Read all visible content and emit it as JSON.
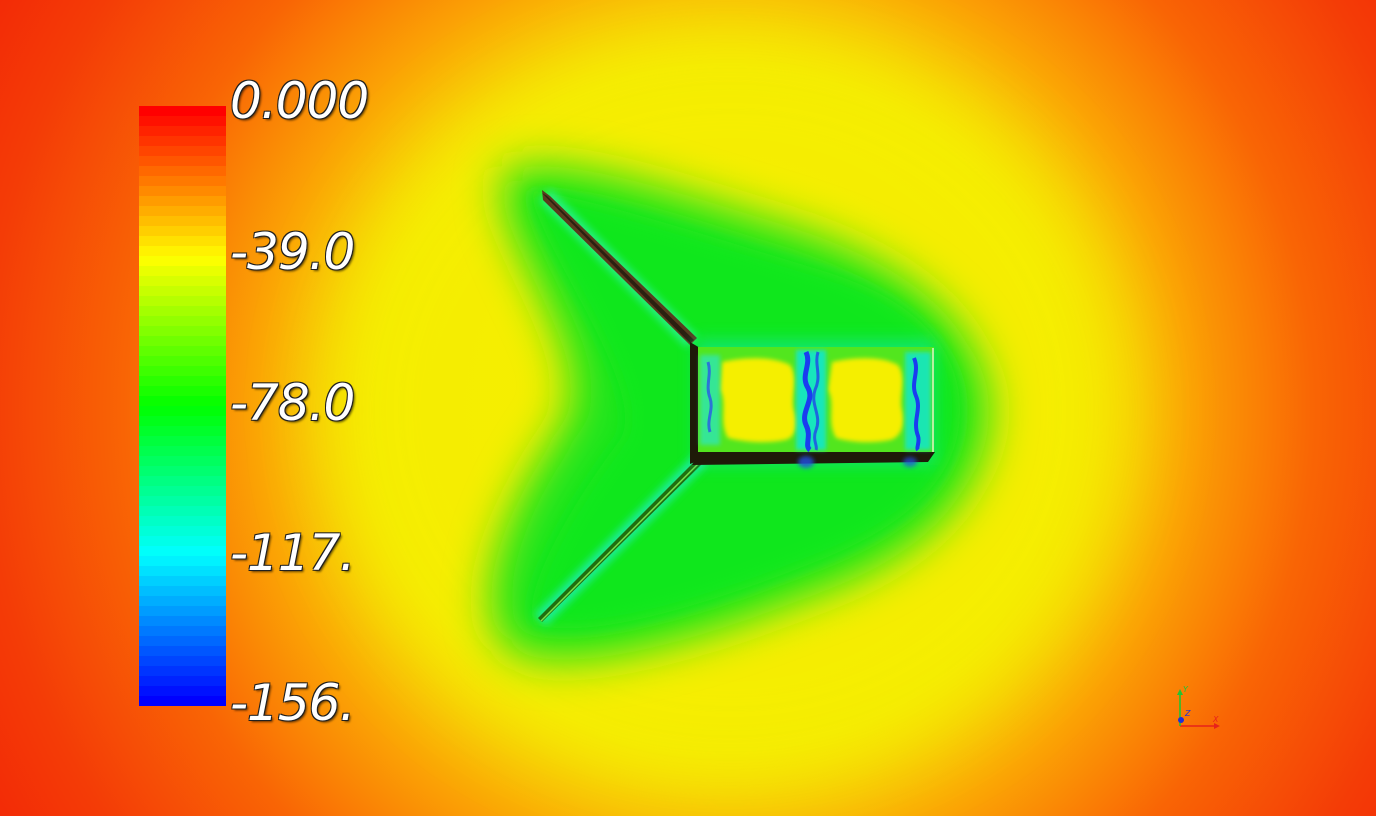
{
  "scalar_bar": {
    "labels": [
      "0.000",
      "-39.0",
      "-78.0",
      "-117.",
      "-156."
    ],
    "values": [
      0.0,
      -39.0,
      -78.0,
      -117.0,
      -156.0
    ],
    "range": [
      -156.0,
      0.0
    ],
    "colormap": "rainbow (blue to red)",
    "color_stops": [
      "#0000ff",
      "#00ffff",
      "#00ff00",
      "#ffff00",
      "#ff0000"
    ]
  },
  "orientation_axes": {
    "x_label": "X",
    "y_label": "Y",
    "z_label": "Z",
    "x_color": "#e8221a",
    "y_color": "#22c232",
    "z_color": "#1e2fd8"
  },
  "field_colors": {
    "far_field": "#f31f06",
    "mid_orange": "#fb9a05",
    "yellow": "#f5ef06",
    "green": "#1ee51a",
    "cyan": "#0fe6d8",
    "blue": "#1a3ef0"
  }
}
